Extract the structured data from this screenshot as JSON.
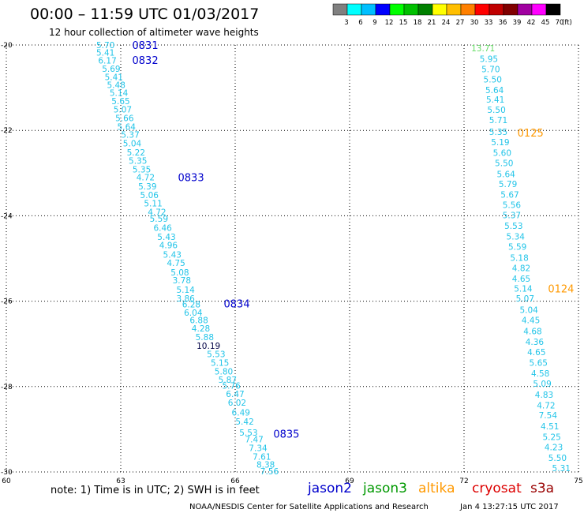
{
  "header": {
    "title": "00:00 – 11:59 UTC 01/03/2017",
    "subtitle": "12 hour collection of altimeter wave heights"
  },
  "colorbar": {
    "labels": [
      "3",
      "6",
      "9",
      "12",
      "15",
      "18",
      "21",
      "24",
      "27",
      "30",
      "33",
      "36",
      "39",
      "42",
      "45",
      "70"
    ],
    "unit": "(ft)",
    "colors": [
      "#808080",
      "#00ffff",
      "#00bfff",
      "#0000ff",
      "#00ff00",
      "#00c000",
      "#008000",
      "#ffff00",
      "#ffbf00",
      "#ff8000",
      "#ff0000",
      "#c00000",
      "#800000",
      "#a000a0",
      "#ff00ff",
      "#000000"
    ]
  },
  "footer": {
    "note": "note: 1) Time is in UTC; 2) SWH is in feet",
    "credit": "NOAA/NESDIS Center for Satellite Applications and Research",
    "timestamp": "Jan  4 13:27:15 UTC 2017"
  },
  "legend": [
    {
      "name": "jason2",
      "color": "#0000cc"
    },
    {
      "name": "jason3",
      "color": "#009900"
    },
    {
      "name": "altika",
      "color": "#ff9900"
    },
    {
      "name": "cryosat",
      "color": "#dd0000"
    },
    {
      "name": "s3a",
      "color": "#990000"
    }
  ],
  "chart_data": {
    "type": "scatter",
    "title": "00:00 – 11:59 UTC 01/03/2017",
    "subtitle": "12 hour collection of altimeter wave heights",
    "xlabel": "",
    "ylabel": "",
    "xlim": [
      60,
      75
    ],
    "ylim": [
      -30,
      -20
    ],
    "xticks": [
      60,
      63,
      66,
      69,
      72,
      75
    ],
    "yticks": [
      -20,
      -22,
      -24,
      -26,
      -28,
      -30
    ],
    "grid": true,
    "series": [
      {
        "name": "jason2",
        "color": "#0000cc",
        "pass_labels": [
          {
            "text": "0831",
            "lon": 63.3,
            "lat": -20.0
          },
          {
            "text": "0832",
            "lon": 63.3,
            "lat": -20.35
          },
          {
            "text": "0833",
            "lon": 64.5,
            "lat": -23.1
          },
          {
            "text": "0834",
            "lon": 65.7,
            "lat": -26.05
          },
          {
            "text": "0835",
            "lon": 67.0,
            "lat": -29.1
          }
        ],
        "points": [
          {
            "lon": 62.6,
            "lat": -20.0,
            "swh": "5.70"
          },
          {
            "lon": 62.6,
            "lat": -20.18,
            "swh": "5.41"
          },
          {
            "lon": 62.65,
            "lat": -20.36,
            "swh": "6.17"
          },
          {
            "lon": 62.75,
            "lat": -20.55,
            "swh": "5.69"
          },
          {
            "lon": 62.82,
            "lat": -20.75,
            "swh": "5.41"
          },
          {
            "lon": 62.88,
            "lat": -20.93,
            "swh": "5.48"
          },
          {
            "lon": 62.95,
            "lat": -21.12,
            "swh": "5.14"
          },
          {
            "lon": 63.0,
            "lat": -21.31,
            "swh": "5.65"
          },
          {
            "lon": 63.05,
            "lat": -21.51,
            "swh": "5.07"
          },
          {
            "lon": 63.1,
            "lat": -21.71,
            "swh": "5.66"
          },
          {
            "lon": 63.15,
            "lat": -21.91,
            "swh": "5.64"
          },
          {
            "lon": 63.25,
            "lat": -22.1,
            "swh": "5.37"
          },
          {
            "lon": 63.3,
            "lat": -22.3,
            "swh": "5.04"
          },
          {
            "lon": 63.4,
            "lat": -22.51,
            "swh": "5.22"
          },
          {
            "lon": 63.45,
            "lat": -22.71,
            "swh": "5.35"
          },
          {
            "lon": 63.55,
            "lat": -22.91,
            "swh": "5.35"
          },
          {
            "lon": 63.65,
            "lat": -23.1,
            "swh": "4.72"
          },
          {
            "lon": 63.7,
            "lat": -23.31,
            "swh": "5.39"
          },
          {
            "lon": 63.75,
            "lat": -23.51,
            "swh": "5.06"
          },
          {
            "lon": 63.85,
            "lat": -23.71,
            "swh": "5.11"
          },
          {
            "lon": 63.95,
            "lat": -23.91,
            "swh": "4.72"
          },
          {
            "lon": 64.0,
            "lat": -24.07,
            "swh": "5.59"
          },
          {
            "lon": 64.1,
            "lat": -24.28,
            "swh": "6.46"
          },
          {
            "lon": 64.2,
            "lat": -24.49,
            "swh": "5.43"
          },
          {
            "lon": 64.25,
            "lat": -24.69,
            "swh": "4.96"
          },
          {
            "lon": 64.35,
            "lat": -24.91,
            "swh": "5.43"
          },
          {
            "lon": 64.45,
            "lat": -25.1,
            "swh": "4.75"
          },
          {
            "lon": 64.55,
            "lat": -25.32,
            "swh": "5.08"
          },
          {
            "lon": 64.6,
            "lat": -25.51,
            "swh": "3.78"
          },
          {
            "lon": 64.7,
            "lat": -25.73,
            "swh": "5.14"
          },
          {
            "lon": 64.7,
            "lat": -25.93,
            "swh": "3.86"
          },
          {
            "lon": 64.85,
            "lat": -26.07,
            "swh": "6.28"
          },
          {
            "lon": 64.9,
            "lat": -26.27,
            "swh": "6.04"
          },
          {
            "lon": 65.05,
            "lat": -26.44,
            "swh": "6.88"
          },
          {
            "lon": 65.1,
            "lat": -26.64,
            "swh": "4.28"
          },
          {
            "lon": 65.2,
            "lat": -26.84,
            "swh": "5.88"
          },
          {
            "lon": 65.3,
            "lat": -27.04,
            "swh": "10.19"
          },
          {
            "lon": 65.5,
            "lat": -27.24,
            "swh": "5.53"
          },
          {
            "lon": 65.6,
            "lat": -27.44,
            "swh": "5.15"
          },
          {
            "lon": 65.7,
            "lat": -27.64,
            "swh": "5.80"
          },
          {
            "lon": 65.8,
            "lat": -27.84,
            "swh": "5.87"
          },
          {
            "lon": 65.9,
            "lat": -27.98,
            "swh": "5.76"
          },
          {
            "lon": 66.0,
            "lat": -28.17,
            "swh": "6.47"
          },
          {
            "lon": 66.05,
            "lat": -28.37,
            "swh": "6.02"
          },
          {
            "lon": 66.15,
            "lat": -28.6,
            "swh": "6.49"
          },
          {
            "lon": 66.25,
            "lat": -28.82,
            "swh": "5.42"
          },
          {
            "lon": 66.35,
            "lat": -29.08,
            "swh": "5.53"
          },
          {
            "lon": 66.5,
            "lat": -29.23,
            "swh": "7.47"
          },
          {
            "lon": 66.6,
            "lat": -29.44,
            "swh": "7.34"
          },
          {
            "lon": 66.7,
            "lat": -29.64,
            "swh": "7.61"
          },
          {
            "lon": 66.8,
            "lat": -29.82,
            "swh": "8.38"
          },
          {
            "lon": 66.9,
            "lat": -29.98,
            "swh": "7.56"
          }
        ]
      },
      {
        "name": "altika",
        "color": "#ff9900",
        "pass_labels": [
          {
            "text": "0125",
            "lon": 73.4,
            "lat": -22.05
          },
          {
            "text": "0124",
            "lon": 74.2,
            "lat": -25.7
          }
        ],
        "points": [
          {
            "lon": 72.5,
            "lat": -20.07,
            "swh": "13.71"
          },
          {
            "lon": 72.65,
            "lat": -20.32,
            "swh": "5.95"
          },
          {
            "lon": 72.7,
            "lat": -20.56,
            "swh": "5.70"
          },
          {
            "lon": 72.75,
            "lat": -20.8,
            "swh": "5.50"
          },
          {
            "lon": 72.8,
            "lat": -21.05,
            "swh": "5.64"
          },
          {
            "lon": 72.82,
            "lat": -21.28,
            "swh": "5.41"
          },
          {
            "lon": 72.85,
            "lat": -21.52,
            "swh": "5.50"
          },
          {
            "lon": 72.9,
            "lat": -21.76,
            "swh": "5.71"
          },
          {
            "lon": 72.9,
            "lat": -22.03,
            "swh": "5.35"
          },
          {
            "lon": 72.95,
            "lat": -22.27,
            "swh": "5.19"
          },
          {
            "lon": 73.0,
            "lat": -22.52,
            "swh": "5.60"
          },
          {
            "lon": 73.05,
            "lat": -22.76,
            "swh": "5.50"
          },
          {
            "lon": 73.1,
            "lat": -23.02,
            "swh": "5.64"
          },
          {
            "lon": 73.15,
            "lat": -23.25,
            "swh": "5.79"
          },
          {
            "lon": 73.2,
            "lat": -23.5,
            "swh": "5.67"
          },
          {
            "lon": 73.25,
            "lat": -23.74,
            "swh": "5.56"
          },
          {
            "lon": 73.25,
            "lat": -23.98,
            "swh": "5.37"
          },
          {
            "lon": 73.3,
            "lat": -24.23,
            "swh": "5.53"
          },
          {
            "lon": 73.35,
            "lat": -24.48,
            "swh": "5.34"
          },
          {
            "lon": 73.4,
            "lat": -24.72,
            "swh": "5.59"
          },
          {
            "lon": 73.45,
            "lat": -24.98,
            "swh": "5.18"
          },
          {
            "lon": 73.5,
            "lat": -25.22,
            "swh": "4.82"
          },
          {
            "lon": 73.5,
            "lat": -25.47,
            "swh": "4.65"
          },
          {
            "lon": 73.55,
            "lat": -25.7,
            "swh": "5.14"
          },
          {
            "lon": 73.6,
            "lat": -25.93,
            "swh": "5.07"
          },
          {
            "lon": 73.7,
            "lat": -26.2,
            "swh": "5.04"
          },
          {
            "lon": 73.75,
            "lat": -26.44,
            "swh": "4.45"
          },
          {
            "lon": 73.8,
            "lat": -26.7,
            "swh": "4.68"
          },
          {
            "lon": 73.85,
            "lat": -26.95,
            "swh": "4.36"
          },
          {
            "lon": 73.9,
            "lat": -27.19,
            "swh": "4.65"
          },
          {
            "lon": 73.95,
            "lat": -27.44,
            "swh": "5.65"
          },
          {
            "lon": 74.0,
            "lat": -27.69,
            "swh": "4.58"
          },
          {
            "lon": 74.05,
            "lat": -27.93,
            "swh": "5.09"
          },
          {
            "lon": 74.1,
            "lat": -28.19,
            "swh": "4.83"
          },
          {
            "lon": 74.15,
            "lat": -28.44,
            "swh": "4.72"
          },
          {
            "lon": 74.2,
            "lat": -28.67,
            "swh": "7.54"
          },
          {
            "lon": 74.25,
            "lat": -28.93,
            "swh": "4.51"
          },
          {
            "lon": 74.3,
            "lat": -29.18,
            "swh": "5.25"
          },
          {
            "lon": 74.35,
            "lat": -29.42,
            "swh": "4.23"
          },
          {
            "lon": 74.45,
            "lat": -29.67,
            "swh": "5.50"
          },
          {
            "lon": 74.55,
            "lat": -29.91,
            "swh": "5.31"
          }
        ]
      }
    ]
  }
}
